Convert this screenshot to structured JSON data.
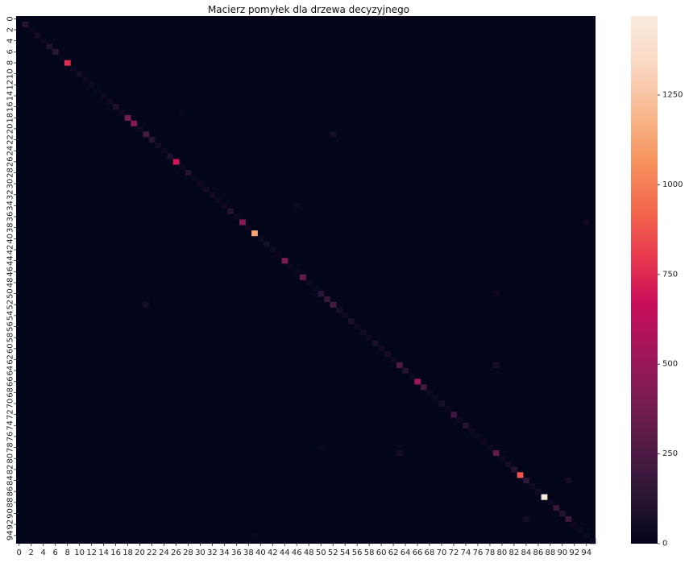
{
  "chart_data": {
    "type": "heatmap",
    "title": "Macierz pomyłek dla drzewa decyzyjnego",
    "n_classes": 96,
    "x_tick_labels": [
      "0",
      "2",
      "4",
      "6",
      "8",
      "10",
      "12",
      "14",
      "16",
      "18",
      "20",
      "22",
      "24",
      "26",
      "28",
      "30",
      "32",
      "34",
      "36",
      "38",
      "40",
      "42",
      "44",
      "46",
      "48",
      "50",
      "52",
      "54",
      "56",
      "58",
      "60",
      "62",
      "64",
      "66",
      "68",
      "70",
      "72",
      "74",
      "76",
      "78",
      "80",
      "82",
      "84",
      "86",
      "88",
      "90",
      "92",
      "94"
    ],
    "y_tick_labels": [
      "0",
      "2",
      "4",
      "6",
      "8",
      "10",
      "12",
      "14",
      "16",
      "18",
      "20",
      "22",
      "24",
      "26",
      "28",
      "30",
      "32",
      "34",
      "36",
      "38",
      "40",
      "42",
      "44",
      "46",
      "48",
      "50",
      "52",
      "54",
      "56",
      "58",
      "60",
      "62",
      "64",
      "66",
      "68",
      "70",
      "72",
      "74",
      "76",
      "78",
      "80",
      "82",
      "84",
      "86",
      "88",
      "90",
      "92",
      "94"
    ],
    "colorbar": {
      "min": 0,
      "max": 1470,
      "ticks": [
        "0",
        "250",
        "500",
        "750",
        "1000",
        "1250"
      ]
    },
    "colormap": [
      "#03051a",
      "#2a1636",
      "#521b47",
      "#7a1d53",
      "#a1155a",
      "#c80e5a",
      "#e93a4d",
      "#f26a4d",
      "#f6945f",
      "#f7b98f",
      "#fad8c4",
      "#faebdd"
    ],
    "diagonal": [
      {
        "i": 1,
        "v": 120
      },
      {
        "i": 3,
        "v": 60
      },
      {
        "i": 5,
        "v": 100
      },
      {
        "i": 6,
        "v": 130
      },
      {
        "i": 8,
        "v": 760
      },
      {
        "i": 10,
        "v": 60
      },
      {
        "i": 11,
        "v": 40
      },
      {
        "i": 16,
        "v": 90
      },
      {
        "i": 18,
        "v": 380
      },
      {
        "i": 19,
        "v": 440
      },
      {
        "i": 21,
        "v": 230
      },
      {
        "i": 22,
        "v": 120
      },
      {
        "i": 23,
        "v": 60
      },
      {
        "i": 25,
        "v": 90
      },
      {
        "i": 26,
        "v": 690
      },
      {
        "i": 28,
        "v": 110
      },
      {
        "i": 31,
        "v": 60
      },
      {
        "i": 32,
        "v": 50
      },
      {
        "i": 35,
        "v": 120
      },
      {
        "i": 37,
        "v": 440
      },
      {
        "i": 39,
        "v": 1130
      },
      {
        "i": 41,
        "v": 70
      },
      {
        "i": 44,
        "v": 400
      },
      {
        "i": 47,
        "v": 320
      },
      {
        "i": 50,
        "v": 140
      },
      {
        "i": 51,
        "v": 170
      },
      {
        "i": 52,
        "v": 230
      },
      {
        "i": 53,
        "v": 80
      },
      {
        "i": 55,
        "v": 90
      },
      {
        "i": 57,
        "v": 50
      },
      {
        "i": 59,
        "v": 80
      },
      {
        "i": 61,
        "v": 60
      },
      {
        "i": 63,
        "v": 250
      },
      {
        "i": 64,
        "v": 110
      },
      {
        "i": 66,
        "v": 520
      },
      {
        "i": 67,
        "v": 210
      },
      {
        "i": 70,
        "v": 80
      },
      {
        "i": 72,
        "v": 200
      },
      {
        "i": 74,
        "v": 120
      },
      {
        "i": 79,
        "v": 320
      },
      {
        "i": 81,
        "v": 60
      },
      {
        "i": 82,
        "v": 110
      },
      {
        "i": 83,
        "v": 880
      },
      {
        "i": 84,
        "v": 150
      },
      {
        "i": 87,
        "v": 1470
      },
      {
        "i": 89,
        "v": 180
      },
      {
        "i": 90,
        "v": 110
      },
      {
        "i": 91,
        "v": 180
      },
      {
        "i": 2,
        "v": 20
      },
      {
        "i": 4,
        "v": 30
      },
      {
        "i": 7,
        "v": 20
      },
      {
        "i": 9,
        "v": 30
      },
      {
        "i": 12,
        "v": 30
      },
      {
        "i": 13,
        "v": 20
      },
      {
        "i": 14,
        "v": 30
      },
      {
        "i": 15,
        "v": 40
      },
      {
        "i": 17,
        "v": 40
      },
      {
        "i": 20,
        "v": 40
      },
      {
        "i": 24,
        "v": 30
      },
      {
        "i": 27,
        "v": 30
      },
      {
        "i": 29,
        "v": 30
      },
      {
        "i": 30,
        "v": 40
      },
      {
        "i": 33,
        "v": 30
      },
      {
        "i": 34,
        "v": 40
      },
      {
        "i": 36,
        "v": 30
      },
      {
        "i": 38,
        "v": 40
      },
      {
        "i": 40,
        "v": 40
      },
      {
        "i": 42,
        "v": 40
      },
      {
        "i": 43,
        "v": 30
      },
      {
        "i": 45,
        "v": 30
      },
      {
        "i": 46,
        "v": 30
      },
      {
        "i": 48,
        "v": 40
      },
      {
        "i": 49,
        "v": 30
      },
      {
        "i": 54,
        "v": 40
      },
      {
        "i": 56,
        "v": 40
      },
      {
        "i": 58,
        "v": 30
      },
      {
        "i": 60,
        "v": 40
      },
      {
        "i": 62,
        "v": 30
      },
      {
        "i": 65,
        "v": 30
      },
      {
        "i": 68,
        "v": 40
      },
      {
        "i": 69,
        "v": 30
      },
      {
        "i": 71,
        "v": 30
      },
      {
        "i": 73,
        "v": 40
      },
      {
        "i": 75,
        "v": 30
      },
      {
        "i": 76,
        "v": 30
      },
      {
        "i": 77,
        "v": 30
      },
      {
        "i": 78,
        "v": 40
      },
      {
        "i": 80,
        "v": 30
      },
      {
        "i": 85,
        "v": 40
      },
      {
        "i": 86,
        "v": 50
      },
      {
        "i": 88,
        "v": 40
      },
      {
        "i": 92,
        "v": 30
      },
      {
        "i": 93,
        "v": 30
      },
      {
        "i": 94,
        "v": 30
      },
      {
        "i": 95,
        "v": 30
      }
    ],
    "off_diagonal": [
      {
        "r": 21,
        "c": 52,
        "v": 70
      },
      {
        "r": 52,
        "c": 21,
        "v": 70
      },
      {
        "r": 63,
        "c": 79,
        "v": 70
      },
      {
        "r": 79,
        "c": 63,
        "v": 60
      },
      {
        "r": 84,
        "c": 91,
        "v": 60
      },
      {
        "r": 91,
        "c": 84,
        "v": 60
      },
      {
        "r": 37,
        "c": 94,
        "v": 40
      },
      {
        "r": 50,
        "c": 79,
        "v": 30
      },
      {
        "r": 34,
        "c": 46,
        "v": 30
      },
      {
        "r": 78,
        "c": 50,
        "v": 25
      },
      {
        "r": 94,
        "c": 39,
        "v": 25
      },
      {
        "r": 17,
        "c": 27,
        "v": 25
      }
    ]
  }
}
